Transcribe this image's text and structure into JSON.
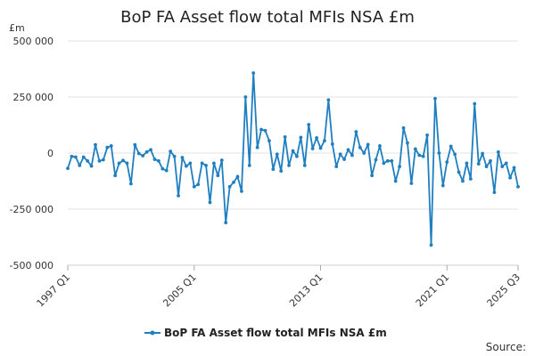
{
  "chart_data": {
    "type": "line",
    "title": "BoP FA Asset flow total MFIs NSA £m",
    "ylabel": "£m",
    "xlabel": "",
    "ylim": [
      -500000,
      500000
    ],
    "yticks": [
      500000,
      250000,
      0,
      -250000,
      -500000
    ],
    "ytick_labels": [
      "500 000",
      "250 000",
      "0",
      "-250 000",
      "-500 000"
    ],
    "xticks": [
      {
        "label": "1997 Q1",
        "index": 0
      },
      {
        "label": "2005 Q1",
        "index": 32
      },
      {
        "label": "2013 Q1",
        "index": 64
      },
      {
        "label": "2021 Q1",
        "index": 96
      },
      {
        "label": "2025 Q3",
        "index": 114
      }
    ],
    "grid": true,
    "legend_position": "bottom",
    "series": [
      {
        "name": "BoP FA Asset flow total MFIs NSA £m",
        "color": "#1f7fc0",
        "start": "1997 Q1",
        "end": "2025 Q3",
        "values": [
          -68000,
          -15000,
          -18000,
          -55000,
          -18000,
          -35000,
          -58000,
          37000,
          -35000,
          -30000,
          25000,
          32000,
          -100000,
          -45000,
          -33000,
          -45000,
          -137000,
          37000,
          -2000,
          -12000,
          5000,
          15000,
          -28000,
          -35000,
          -70000,
          -78000,
          8000,
          -15000,
          -190000,
          -20000,
          -58000,
          -45000,
          -150000,
          -140000,
          -45000,
          -55000,
          -220000,
          -45000,
          -100000,
          -32000,
          -310000,
          -150000,
          -130000,
          -105000,
          -170000,
          250000,
          -55000,
          357000,
          25000,
          105000,
          100000,
          55000,
          -72000,
          -5000,
          -80000,
          72000,
          -55000,
          10000,
          -15000,
          70000,
          -55000,
          127000,
          20000,
          68000,
          22000,
          55000,
          237000,
          40000,
          -60000,
          -5000,
          -28000,
          15000,
          -10000,
          95000,
          25000,
          0,
          38000,
          -100000,
          -30000,
          32000,
          -45000,
          -35000,
          -35000,
          -125000,
          -60000,
          112000,
          45000,
          -135000,
          18000,
          -10000,
          -15000,
          80000,
          -410000,
          243000,
          0,
          -145000,
          -40000,
          30000,
          -5000,
          -85000,
          -125000,
          -45000,
          -115000,
          220000,
          -48000,
          -2000,
          -60000,
          -35000,
          -175000,
          5000,
          -60000,
          -45000,
          -110000,
          -65000,
          -150000
        ]
      }
    ]
  },
  "legend": {
    "label": "BoP FA Asset flow total MFIs NSA £m"
  },
  "source": "Source:"
}
